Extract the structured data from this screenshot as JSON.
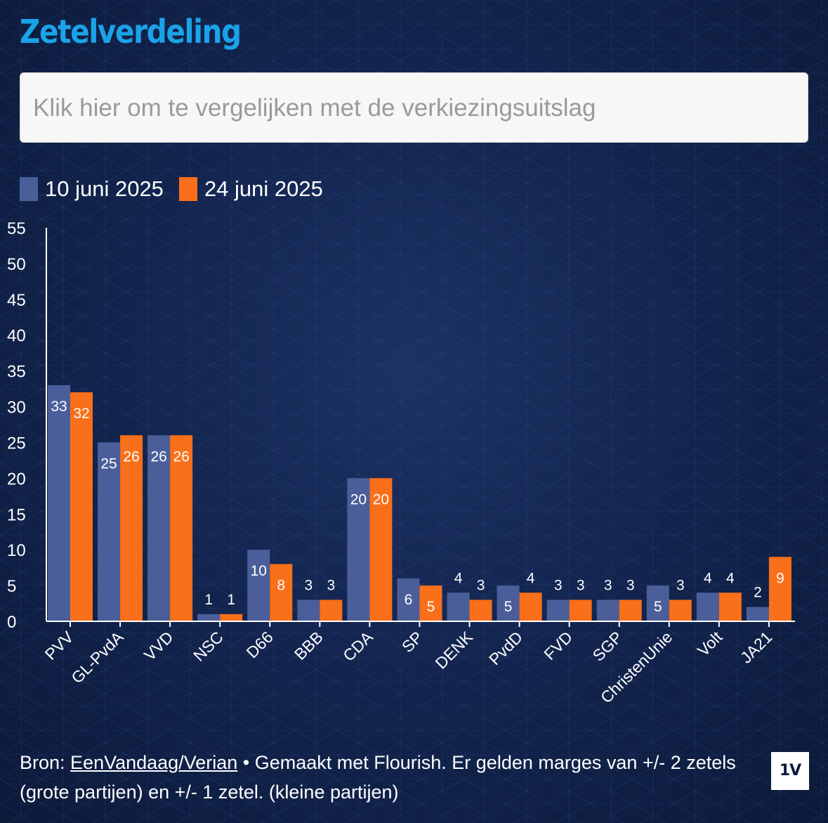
{
  "title": "Zetelverdeling",
  "compare_button": "Klik hier om te vergelijken met de verkiezingsuitslag",
  "colors": {
    "series1": "#4a5f9a",
    "series2": "#f96f1a",
    "title": "#1aa3e8"
  },
  "chart_data": {
    "type": "bar",
    "title": "Zetelverdeling",
    "categories": [
      "PVV",
      "GL-PvdA",
      "VVD",
      "NSC",
      "D66",
      "BBB",
      "CDA",
      "SP",
      "DENK",
      "PvdD",
      "FVD",
      "SGP",
      "ChristenUnie",
      "Volt",
      "JA21"
    ],
    "series": [
      {
        "name": "10 juni 2025",
        "values": [
          33,
          25,
          26,
          1,
          10,
          3,
          20,
          6,
          4,
          5,
          3,
          3,
          5,
          4,
          2
        ]
      },
      {
        "name": "24 juni 2025",
        "values": [
          32,
          26,
          26,
          1,
          8,
          3,
          20,
          5,
          3,
          4,
          3,
          3,
          3,
          4,
          9
        ]
      }
    ],
    "yticks": [
      0,
      5,
      10,
      15,
      20,
      25,
      30,
      35,
      40,
      45,
      50,
      55
    ],
    "ylim": [
      0,
      55
    ],
    "xlabel": "",
    "ylabel": "",
    "legend": "top-left"
  },
  "footer": {
    "prefix": "Bron: ",
    "link": "EenVandaag/Verian",
    "rest": " • Gemaakt met Flourish. Er gelden marges van +/- 2 zetels (grote partijen) en +/- 1 zetel. (kleine partijen)"
  },
  "logo": "1V"
}
